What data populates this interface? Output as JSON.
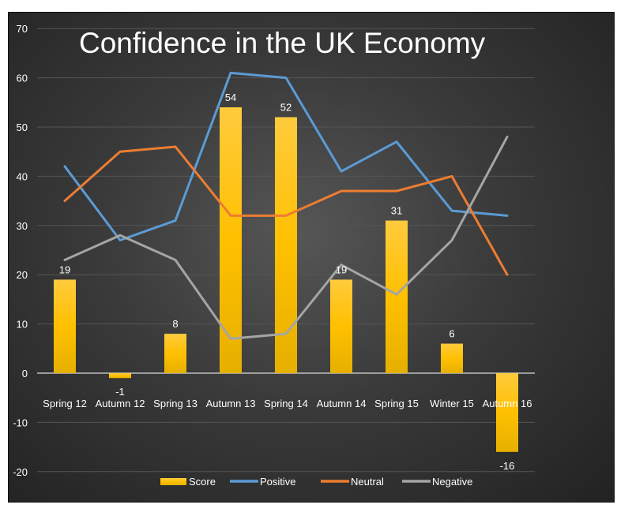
{
  "chart_data": {
    "type": "bar+line",
    "title": "Confidence in the UK Economy",
    "categories": [
      "Spring 12",
      "Autumn 12",
      "Spring 13",
      "Autumn 13",
      "Spring 14",
      "Autumn 14",
      "Spring 15",
      "Winter 15",
      "Autumn 16"
    ],
    "ylim": [
      -20,
      70
    ],
    "yticks": [
      -20,
      -10,
      0,
      10,
      20,
      30,
      40,
      50,
      60,
      70
    ],
    "grid": true,
    "legend_position": "bottom",
    "series": [
      {
        "name": "Score",
        "type": "bar",
        "color": "#FFC000",
        "values": [
          19,
          -1,
          8,
          54,
          52,
          19,
          31,
          6,
          -16
        ],
        "data_labels": true
      },
      {
        "name": "Positive",
        "type": "line",
        "color": "#5B9BD5",
        "values": [
          42,
          27,
          31,
          61,
          60,
          41,
          47,
          33,
          32
        ]
      },
      {
        "name": "Neutral",
        "type": "line",
        "color": "#ED7D31",
        "values": [
          35,
          45,
          46,
          32,
          32,
          37,
          37,
          40,
          20
        ]
      },
      {
        "name": "Negative",
        "type": "line",
        "color": "#A5A5A5",
        "values": [
          23,
          28,
          23,
          7,
          8,
          22,
          16,
          27,
          48
        ]
      }
    ]
  }
}
